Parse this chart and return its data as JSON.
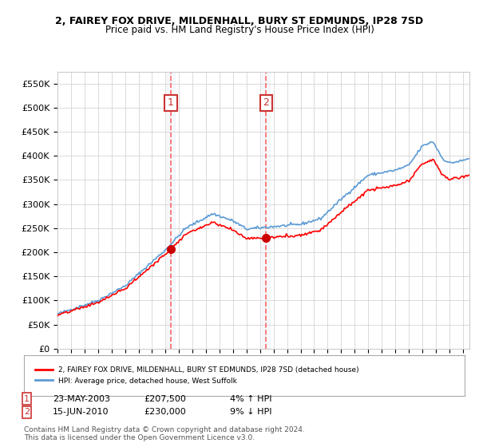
{
  "title1": "2, FAIREY FOX DRIVE, MILDENHALL, BURY ST EDMUNDS, IP28 7SD",
  "title2": "Price paid vs. HM Land Registry's House Price Index (HPI)",
  "ylabel_ticks": [
    "£0",
    "£50K",
    "£100K",
    "£150K",
    "£200K",
    "£250K",
    "£300K",
    "£350K",
    "£400K",
    "£450K",
    "£500K",
    "£550K"
  ],
  "ylabel_values": [
    0,
    50000,
    100000,
    150000,
    200000,
    250000,
    300000,
    350000,
    400000,
    450000,
    500000,
    550000
  ],
  "ylim": [
    0,
    575000
  ],
  "xmin": 1995.0,
  "xmax": 2025.5,
  "purchase1_x": 2003.39,
  "purchase1_y": 207500,
  "purchase1_label": "1",
  "purchase1_date": "23-MAY-2003",
  "purchase1_price": "£207,500",
  "purchase1_hpi": "4% ↑ HPI",
  "purchase2_x": 2010.45,
  "purchase2_y": 230000,
  "purchase2_label": "2",
  "purchase2_date": "15-JUN-2010",
  "purchase2_price": "£230,000",
  "purchase2_hpi": "9% ↓ HPI",
  "hpi_color": "#5b9bd5",
  "price_color": "#ff0000",
  "marker_color": "#cc0000",
  "vline_color": "#ff6666",
  "box_color": "#cc3333",
  "shading_color": "#dce6f1",
  "legend1_text": "2, FAIREY FOX DRIVE, MILDENHALL, BURY ST EDMUNDS, IP28 7SD (detached house)",
  "legend2_text": "HPI: Average price, detached house, West Suffolk",
  "footer": "Contains HM Land Registry data © Crown copyright and database right 2024.\nThis data is licensed under the Open Government Licence v3.0.",
  "background_color": "#ffffff",
  "grid_color": "#cccccc",
  "hpi_anchors_x": [
    1995.0,
    1998.0,
    2000.0,
    2003.0,
    2004.5,
    2006.5,
    2008.0,
    2009.0,
    2010.5,
    2013.0,
    2014.5,
    2016.0,
    2018.0,
    2020.0,
    2021.0,
    2022.0,
    2022.8,
    2023.5,
    2024.0,
    2025.0,
    2025.5
  ],
  "hpi_anchors_y": [
    72000,
    100000,
    130000,
    205000,
    250000,
    280000,
    265000,
    248000,
    252000,
    258000,
    270000,
    310000,
    360000,
    370000,
    380000,
    420000,
    430000,
    395000,
    385000,
    390000,
    395000
  ]
}
